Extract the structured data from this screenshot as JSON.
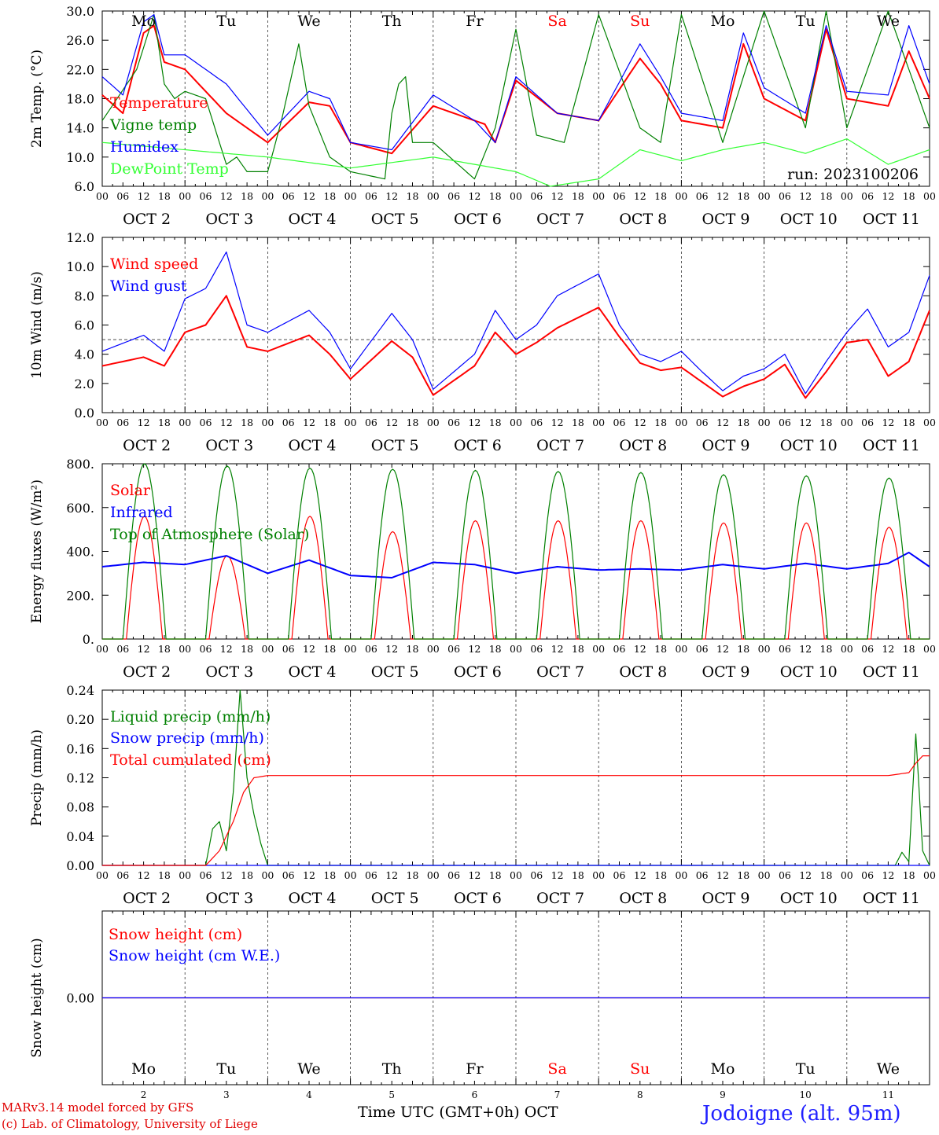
{
  "run_label": "run: 2023100206",
  "x_axis_title": "Time UTC (GMT+0h)",
  "month_label": "OCT",
  "station_label": "Jodoigne (alt. 95m)",
  "credits": [
    "MARv3.14 model forced by GFS",
    "(c) Lab. of Climatology, University of Liege"
  ],
  "colors": {
    "red": "#ff0000",
    "green": "#008000",
    "blue": "#0000ff",
    "lightgreen": "#33ff33",
    "purple": "#8000a0"
  },
  "hour_ticks": [
    "00",
    "06",
    "12",
    "18"
  ],
  "days": [
    {
      "abbr": "Mo",
      "date_label": "OCT  2",
      "num": "2",
      "weekend": false
    },
    {
      "abbr": "Tu",
      "date_label": "OCT  3",
      "num": "3",
      "weekend": false
    },
    {
      "abbr": "We",
      "date_label": "OCT  4",
      "num": "4",
      "weekend": false
    },
    {
      "abbr": "Th",
      "date_label": "OCT  5",
      "num": "5",
      "weekend": false
    },
    {
      "abbr": "Fr",
      "date_label": "OCT  6",
      "num": "6",
      "weekend": false
    },
    {
      "abbr": "Sa",
      "date_label": "OCT  7",
      "num": "7",
      "weekend": true
    },
    {
      "abbr": "Su",
      "date_label": "OCT  8",
      "num": "8",
      "weekend": true
    },
    {
      "abbr": "Mo",
      "date_label": "OCT  9",
      "num": "9",
      "weekend": false
    },
    {
      "abbr": "Tu",
      "date_label": "OCT 10",
      "num": "10",
      "weekend": false
    },
    {
      "abbr": "We",
      "date_label": "OCT 11",
      "num": "11",
      "weekend": false
    }
  ],
  "chart_data": [
    {
      "type": "line",
      "ylabel": "2m Temp. (°C)",
      "ylim": [
        6,
        30
      ],
      "y_ticks": [
        "6.0",
        "10.0",
        "14.0",
        "18.0",
        "22.0",
        "26.0",
        "30.0"
      ],
      "y_tick_values": [
        6,
        10,
        14,
        18,
        22,
        26,
        30
      ],
      "grid": "vertical dashed at midnight",
      "legend_position": "left",
      "series": [
        {
          "name": "Temperature",
          "color": "#ff0000",
          "x": [
            0,
            6,
            12,
            15,
            18,
            24,
            36,
            48,
            60,
            66,
            72,
            84,
            96,
            108,
            111,
            114,
            120,
            132,
            144,
            156,
            162,
            168,
            180,
            186,
            192,
            204,
            210,
            216,
            228,
            234,
            240
          ],
          "values": [
            18.5,
            16,
            27,
            28,
            23,
            22,
            16,
            12,
            17.5,
            17,
            12,
            10.5,
            17,
            15,
            14.5,
            12,
            20.5,
            16,
            15,
            23.5,
            20,
            15,
            14,
            25.5,
            18,
            15,
            27.5,
            18,
            17,
            24.5,
            18
          ]
        },
        {
          "name": "Vigne temp",
          "color": "#008000",
          "x": [
            0,
            10,
            15,
            18,
            21,
            24,
            30,
            36,
            39,
            42,
            48,
            52,
            57,
            60,
            66,
            72,
            82,
            84,
            86,
            88,
            90,
            96,
            108,
            114,
            120,
            126,
            134,
            144,
            156,
            162,
            168,
            180,
            192,
            204,
            210,
            216,
            228,
            240
          ],
          "values": [
            15,
            22,
            29.5,
            20,
            18,
            19,
            18,
            9,
            10,
            8,
            8,
            15,
            25.5,
            17,
            10,
            8,
            7,
            16,
            20,
            21,
            12,
            12,
            7,
            14,
            27.5,
            13,
            12,
            29.5,
            14,
            12,
            29.5,
            12,
            30,
            14,
            30,
            14,
            30,
            14
          ]
        },
        {
          "name": "Humidex",
          "color": "#0000ff",
          "x": [
            0,
            6,
            12,
            15,
            18,
            24,
            36,
            48,
            60,
            66,
            72,
            84,
            96,
            108,
            114,
            120,
            132,
            144,
            156,
            162,
            168,
            180,
            186,
            192,
            204,
            210,
            216,
            228,
            234,
            240
          ],
          "values": [
            21,
            18.5,
            28.5,
            29.5,
            24,
            24,
            20,
            13,
            19,
            18,
            12,
            11,
            18.5,
            15,
            12,
            21,
            16,
            15,
            25.5,
            21,
            16,
            15,
            27,
            19.5,
            16,
            28,
            19,
            18.5,
            28,
            20
          ]
        },
        {
          "name": "DewPoint Temp",
          "color": "#33ff33",
          "x": [
            0,
            24,
            48,
            72,
            96,
            120,
            130,
            144,
            156,
            168,
            180,
            192,
            204,
            216,
            228,
            240
          ],
          "values": [
            12,
            11,
            10,
            8.5,
            10,
            8,
            6,
            7,
            11,
            9.5,
            11,
            12,
            10.5,
            12.5,
            9,
            11
          ]
        }
      ]
    },
    {
      "type": "line",
      "ylabel": "10m Wind (m/s)",
      "ylim": [
        0,
        12
      ],
      "y_ticks": [
        "0.0",
        "2.0",
        "4.0",
        "6.0",
        "8.0",
        "10.0",
        "12.0"
      ],
      "y_tick_values": [
        0,
        2,
        4,
        6,
        8,
        10,
        12
      ],
      "reference_line": 5,
      "series": [
        {
          "name": "Wind speed",
          "color": "#ff0000",
          "x": [
            0,
            12,
            18,
            24,
            30,
            36,
            42,
            48,
            60,
            66,
            72,
            84,
            90,
            96,
            108,
            114,
            120,
            126,
            132,
            144,
            150,
            156,
            162,
            168,
            174,
            180,
            186,
            192,
            198,
            204,
            210,
            216,
            222,
            228,
            234,
            240
          ],
          "values": [
            3.2,
            3.8,
            3.2,
            5.5,
            6,
            8,
            4.5,
            4.2,
            5.3,
            4,
            2.3,
            4.9,
            3.8,
            1.2,
            3.2,
            5.5,
            4,
            4.8,
            5.8,
            7.2,
            5.2,
            3.4,
            2.9,
            3.1,
            2.1,
            1.1,
            1.8,
            2.3,
            3.3,
            1,
            2.8,
            4.8,
            5,
            2.5,
            3.5,
            7
          ]
        },
        {
          "name": "Wind gust",
          "color": "#0000ff",
          "x": [
            0,
            12,
            18,
            24,
            30,
            36,
            42,
            48,
            60,
            66,
            72,
            84,
            90,
            96,
            108,
            114,
            120,
            126,
            132,
            144,
            150,
            156,
            162,
            168,
            174,
            180,
            186,
            192,
            198,
            204,
            210,
            216,
            222,
            228,
            234,
            240
          ],
          "values": [
            4.2,
            5.3,
            4.2,
            7.8,
            8.5,
            11,
            6,
            5.5,
            7,
            5.5,
            3,
            6.8,
            5,
            1.6,
            4,
            7,
            5,
            6,
            8,
            9.5,
            6,
            4,
            3.5,
            4.2,
            2.8,
            1.5,
            2.5,
            3,
            4,
            1.3,
            3.5,
            5.5,
            7.1,
            4.5,
            5.5,
            9.4
          ]
        }
      ]
    },
    {
      "type": "line",
      "ylabel": "Energy fluxes (W/m²)",
      "ylim": [
        0,
        800
      ],
      "y_ticks": [
        "0.",
        "200.",
        "400.",
        "600.",
        "800."
      ],
      "y_tick_values": [
        0,
        200,
        400,
        600,
        800
      ],
      "series": [
        {
          "name": "Solar",
          "color": "#ff0000",
          "daily_peak": [
            560,
            380,
            560,
            490,
            540,
            540,
            540,
            530,
            530,
            510
          ]
        },
        {
          "name": "Infrared",
          "color": "#0000ff",
          "x": [
            0,
            12,
            24,
            36,
            48,
            60,
            72,
            84,
            96,
            108,
            120,
            132,
            144,
            156,
            168,
            180,
            192,
            204,
            216,
            228,
            234,
            240
          ],
          "values": [
            330,
            350,
            340,
            380,
            300,
            360,
            290,
            280,
            350,
            340,
            300,
            330,
            315,
            320,
            315,
            340,
            320,
            345,
            320,
            345,
            395,
            330
          ]
        },
        {
          "name": "Top of Atmosphere (Solar)",
          "color": "#008000",
          "daily_peak": [
            800,
            790,
            780,
            775,
            770,
            765,
            760,
            750,
            745,
            735
          ]
        }
      ]
    },
    {
      "type": "line",
      "ylabel": "Precip (mm/h)",
      "ylim": [
        0,
        0.24
      ],
      "y_ticks": [
        "0.00",
        "0.04",
        "0.08",
        "0.12",
        "0.16",
        "0.20",
        "0.24"
      ],
      "y_tick_values": [
        0,
        0.04,
        0.08,
        0.12,
        0.16,
        0.2,
        0.24
      ],
      "series": [
        {
          "name": "Liquid precip (mm/h)",
          "color": "#008000",
          "x": [
            0,
            30,
            32,
            34,
            36,
            38,
            40,
            42,
            44,
            46,
            48,
            228,
            230,
            232,
            234,
            236,
            238,
            240
          ],
          "values": [
            0,
            0,
            0.05,
            0.06,
            0.02,
            0.1,
            0.24,
            0.12,
            0.07,
            0.03,
            0,
            0,
            0,
            0.018,
            0.005,
            0.18,
            0.02,
            0
          ]
        },
        {
          "name": "Snow precip (mm/h)",
          "color": "#0000ff",
          "x": [
            0,
            240
          ],
          "values": [
            0,
            0
          ]
        },
        {
          "name": "Total cumulated (cm)",
          "color": "#ff0000",
          "x": [
            0,
            30,
            34,
            38,
            41,
            44,
            48,
            228,
            234,
            236,
            238,
            240
          ],
          "values": [
            0,
            0,
            0.02,
            0.06,
            0.1,
            0.12,
            0.123,
            0.123,
            0.127,
            0.14,
            0.15,
            0.15
          ]
        }
      ]
    },
    {
      "type": "line",
      "ylabel": "Snow height (cm)",
      "ylim": [
        -1,
        1
      ],
      "y_ticks": [
        "0.00"
      ],
      "y_tick_values": [
        0
      ],
      "series": [
        {
          "name": "Snow height (cm)",
          "color": "#ff0000",
          "x": [
            0,
            240
          ],
          "values": [
            0,
            0
          ]
        },
        {
          "name": "Snow height (cm W.E.)",
          "color": "#0000ff",
          "x": [
            0,
            240
          ],
          "values": [
            0,
            0
          ]
        }
      ]
    }
  ]
}
